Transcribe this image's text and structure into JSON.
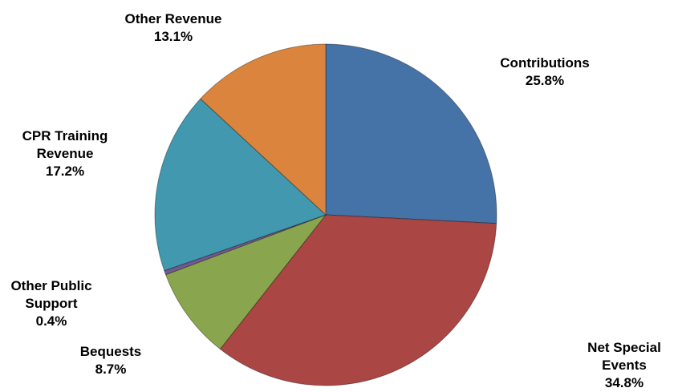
{
  "chart_data": {
    "type": "pie",
    "title": "",
    "slices": [
      {
        "label": "Contributions",
        "value": 25.8,
        "value_label": "25.8%",
        "color": "#4572A7"
      },
      {
        "label": "Net Special Events",
        "value": 34.8,
        "value_label": "34.8%",
        "color": "#AA4643"
      },
      {
        "label": "Bequests",
        "value": 8.7,
        "value_label": "8.7%",
        "color": "#89A54E"
      },
      {
        "label": "Other Public Support",
        "value": 0.4,
        "value_label": "0.4%",
        "color": "#71588F"
      },
      {
        "label": "CPR Training Revenue",
        "value": 17.2,
        "value_label": "17.2%",
        "color": "#4198AF"
      },
      {
        "label": "Other Revenue",
        "value": 13.1,
        "value_label": "13.1%",
        "color": "#DB843D"
      }
    ],
    "label_lines": [
      [
        "Contributions",
        "25.8%"
      ],
      [
        "Net Special",
        "Events",
        "34.8%"
      ],
      [
        "Bequests",
        "8.7%"
      ],
      [
        "Other Public",
        "Support",
        "0.4%"
      ],
      [
        "CPR Training",
        "Revenue",
        "17.2%"
      ],
      [
        "Other Revenue",
        "13.1%"
      ]
    ],
    "start_angle": "12 o'clock",
    "direction": "clockwise",
    "legend": "none"
  }
}
